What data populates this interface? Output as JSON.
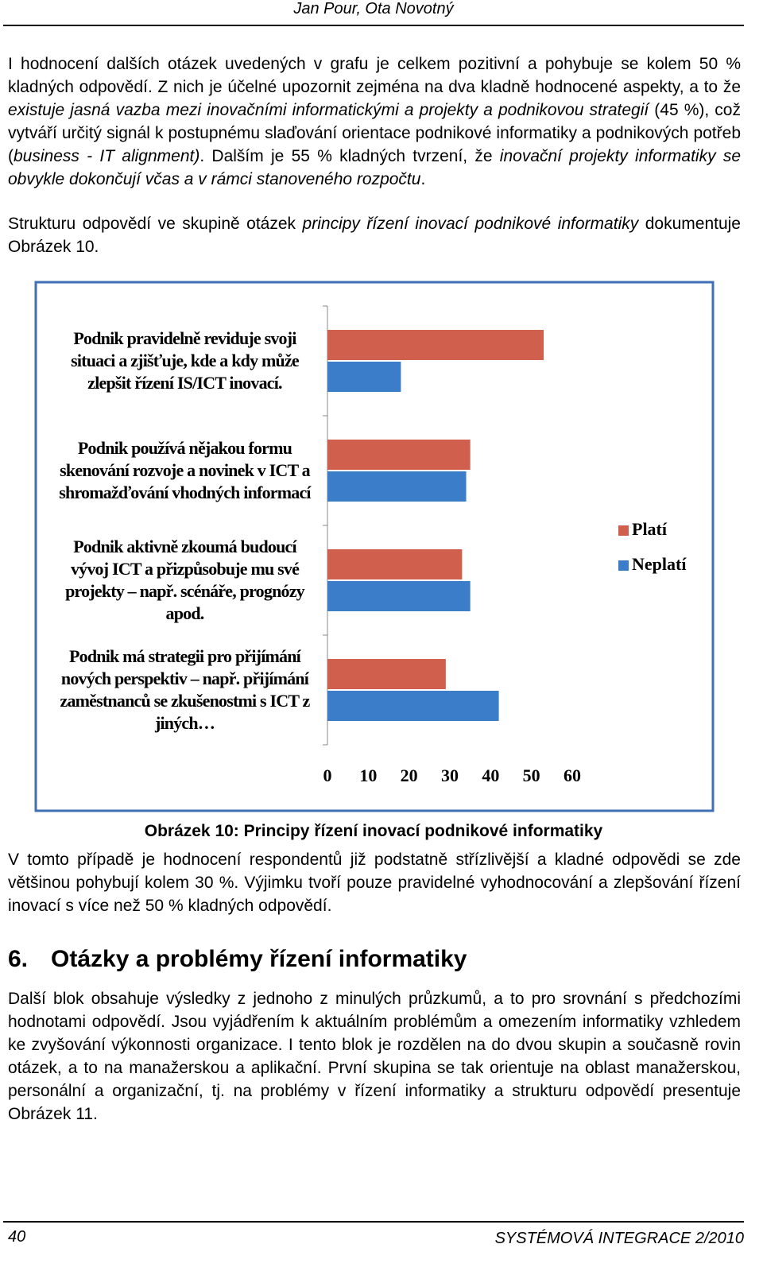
{
  "header": {
    "authors": "Jan Pour, Ota Novotný"
  },
  "paragraphs": [
    [
      {
        "text": "I hodnocení dalších otázek uvedených v grafu je celkem pozitivní a pohybuje se kolem 50 % kladných odpovědí. Z nich je účelné upozornit zejména na dva kladně hodnocené aspekty, a to že "
      },
      {
        "text": "existuje jasná vazba mezi inovačními informatickými a projekty a podnikovou strategií",
        "italic": true
      },
      {
        "text": " (45 %), což vytváří určitý signál k postupnému slaďování orientace podnikové informatiky a podnikových potřeb ("
      },
      {
        "text": "business - IT alignment)",
        "italic": true
      },
      {
        "text": ". Dalším je 55 % kladných tvrzení, že "
      },
      {
        "text": "inovační projekty informatiky se obvykle dokončují včas a v rámci stanoveného rozpočtu",
        "italic": true
      },
      {
        "text": "."
      }
    ],
    [
      {
        "text": "Strukturu odpovědí ve skupině otázek "
      },
      {
        "text": "principy řízení inovací podnikové informatiky",
        "italic": true
      },
      {
        "text": " dokumentuje Obrázek 10."
      }
    ],
    [
      {
        "text": "V tomto případě je hodnocení respondentů již podstatně střízlivější a kladné odpovědi se zde většinou pohybují kolem 30 %. Výjimku tvoří pouze pravidelné vyhodnocování a zlepšování řízení inovací s více než 50 % kladných odpovědí."
      }
    ],
    [
      {
        "text": "Další blok obsahuje výsledky z jednoho z minulých průzkumů, a to pro srovnání s předchozími hodnotami odpovědí. Jsou vyjádřením k aktuálním problémům a omezením informatiky vzhledem ke zvyšování výkonnosti organizace. I tento blok je rozdělen na do dvou skupin a současně rovin otázek, a to na manažerskou a aplikační. První skupina se tak orientuje na oblast manažerskou, personální a organizační, tj. na problémy v řízení informatiky a strukturu odpovědí presentuje Obrázek 11."
      }
    ]
  ],
  "caption": "Obrázek 10: Principy řízení inovací podnikové informatiky",
  "section": {
    "number": "6.",
    "title": "Otázky a problémy řízení informatiky"
  },
  "footer": {
    "page": "40",
    "journal": "SYSTÉMOVÁ INTEGRACE 2/2010"
  },
  "chart_data": {
    "type": "hbar",
    "categories": [
      "Podnik pravidelně reviduje svoji situaci a zjišťuje, kde a kdy může zlepšit řízení IS/ICT inovací.",
      "Podnik používá nějakou formu skenování rozvoje a novinek v ICT a shromažďování vhodných informací",
      "Podnik aktivně zkoumá budoucí vývoj ICT a přizpůsobuje mu své projekty – např. scénáře, prognózy apod.",
      "Podnik má strategii pro přijímání nových perspektiv – např. přijímání zaměstnanců se zkušenostmi s ICT z jiných…"
    ],
    "series": [
      {
        "name": "Platí",
        "color": "#d0604d",
        "values": [
          53,
          35,
          33,
          29
        ]
      },
      {
        "name": "Neplatí",
        "color": "#3b7dc8",
        "values": [
          18,
          34,
          35,
          42
        ]
      }
    ],
    "xlim": [
      0,
      60
    ],
    "xticks": [
      0,
      10,
      20,
      30,
      40,
      50,
      60
    ],
    "legend": "right"
  }
}
